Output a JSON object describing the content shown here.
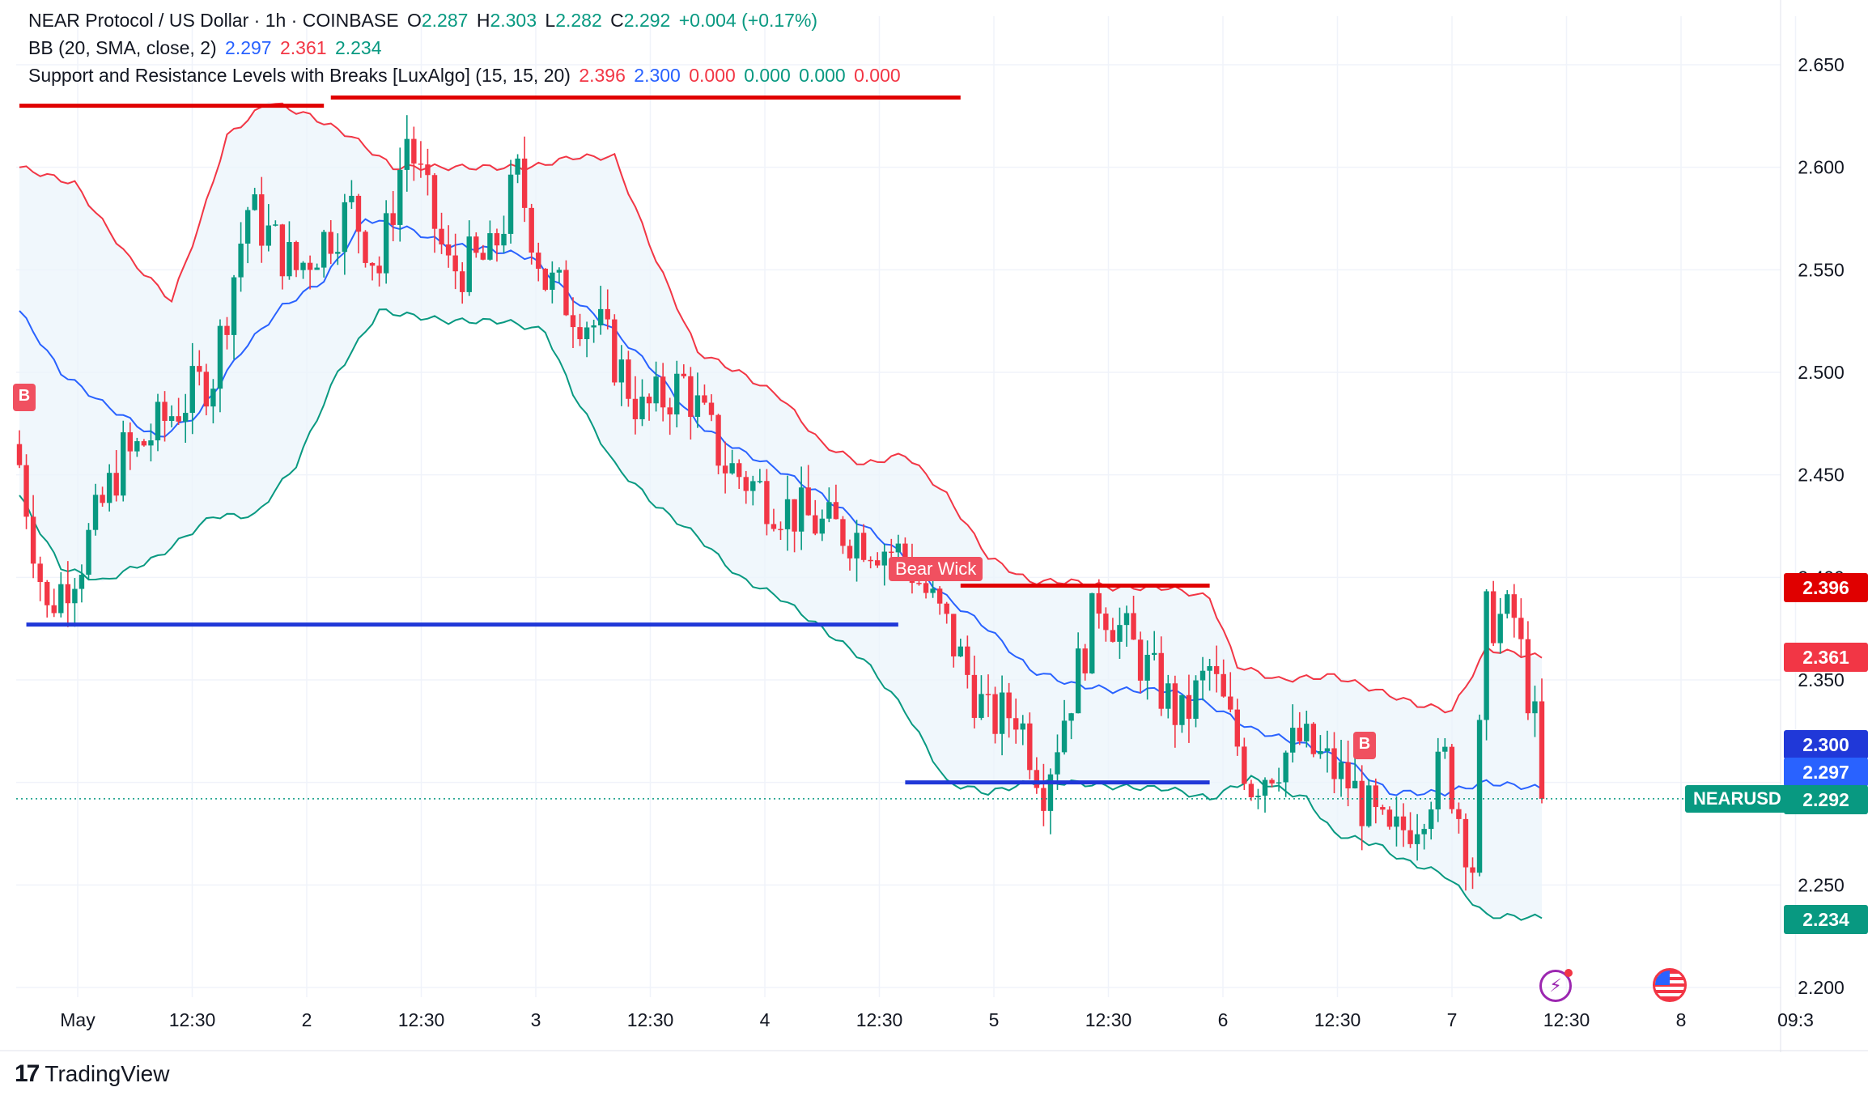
{
  "legend": {
    "symbol": "NEAR Protocol / US Dollar · 1h · COINBASE",
    "o_label": "O",
    "o_value": "2.287",
    "h_label": "H",
    "h_value": "2.303",
    "l_label": "L",
    "l_value": "2.282",
    "c_label": "C",
    "c_value": "2.292",
    "change": "+0.004 (+0.17%)",
    "bb_label": "BB (20, SMA, close, 2)",
    "bb_basis": "2.297",
    "bb_upper": "2.361",
    "bb_lower": "2.234",
    "sr_label": "Support and Resistance Levels with Breaks [LuxAlgo] (15, 15, 20)",
    "sr_v1": "2.396",
    "sr_v2": "2.300",
    "sr_v3": "0.000",
    "sr_v4": "0.000",
    "sr_v5": "0.000",
    "sr_v6": "0.000"
  },
  "price_tags": {
    "resistance": "2.396",
    "bb_upper": "2.361",
    "support": "2.300",
    "bb_basis": "2.297",
    "symbol": "NEARUSD",
    "last": "2.292",
    "bb_lower": "2.234"
  },
  "labels": {
    "bear_wick": "Bear Wick",
    "b1": "B",
    "b2": "B"
  },
  "footer": {
    "brand": "TradingView",
    "mark": "17"
  },
  "colors": {
    "up": "#089981",
    "down": "#f23645",
    "bb_basis": "#2962ff",
    "bb_upper": "#f23645",
    "bb_lower": "#089981",
    "bb_fill": "#eaf3fb",
    "resistance": "#e00000",
    "support": "#2038d8"
  },
  "chart_data": {
    "type": "candlestick",
    "title": "NEAR Protocol / US Dollar · 1h · COINBASE",
    "ylim": [
      2.19,
      2.665
    ],
    "y_ticks": [
      "2.650",
      "2.600",
      "2.550",
      "2.500",
      "2.450",
      "2.400",
      "2.350",
      "2.300",
      "2.250",
      "2.200"
    ],
    "x_ticks": [
      "May",
      "12:30",
      "2",
      "12:30",
      "3",
      "12:30",
      "4",
      "12:30",
      "5",
      "12:30",
      "6",
      "12:30",
      "7",
      "12:30",
      "8",
      "09:3"
    ],
    "ohlc_keypoints": [
      [
        0,
        2.455,
        2.382
      ],
      [
        4,
        2.385,
        2.41
      ],
      [
        9,
        2.41,
        2.46
      ],
      [
        15,
        2.455,
        2.48
      ],
      [
        22,
        2.48,
        2.5
      ],
      [
        28,
        2.5,
        2.58
      ],
      [
        33,
        2.58,
        2.55
      ],
      [
        40,
        2.55,
        2.58
      ],
      [
        48,
        2.58,
        2.55
      ],
      [
        52,
        2.55,
        2.615
      ],
      [
        56,
        2.615,
        2.55
      ],
      [
        62,
        2.55,
        2.555
      ],
      [
        68,
        2.555,
        2.595
      ],
      [
        72,
        2.595,
        2.545
      ],
      [
        76,
        2.545,
        2.52
      ],
      [
        84,
        2.52,
        2.48
      ],
      [
        90,
        2.48,
        2.495
      ],
      [
        96,
        2.495,
        2.455
      ],
      [
        102,
        2.455,
        2.435
      ],
      [
        110,
        2.435,
        2.425
      ],
      [
        116,
        2.425,
        2.42
      ],
      [
        122,
        2.42,
        2.41
      ],
      [
        128,
        2.41,
        2.375
      ],
      [
        134,
        2.375,
        2.33
      ],
      [
        140,
        2.33,
        2.335
      ],
      [
        144,
        2.335,
        2.3
      ],
      [
        148,
        2.3,
        2.355
      ],
      [
        153,
        2.355,
        2.39
      ],
      [
        156,
        2.39,
        2.37
      ],
      [
        160,
        2.37,
        2.33
      ],
      [
        168,
        2.33,
        2.355
      ],
      [
        172,
        2.355,
        2.3
      ],
      [
        178,
        2.3,
        2.32
      ],
      [
        185,
        2.32,
        2.3
      ],
      [
        192,
        2.3,
        2.27
      ],
      [
        198,
        2.27,
        2.285
      ],
      [
        202,
        2.285,
        2.31
      ],
      [
        206,
        2.31,
        2.26
      ],
      [
        210,
        2.26,
        2.38
      ],
      [
        212,
        2.38,
        2.38
      ],
      [
        216,
        2.38,
        2.31
      ],
      [
        220,
        2.31,
        2.292
      ]
    ],
    "last_close": 2.292,
    "bollinger": {
      "period": 20,
      "basis": 2.297,
      "upper": 2.361,
      "lower": 2.234,
      "upper_path": [
        [
          0,
          2.6
        ],
        [
          8,
          2.592
        ],
        [
          16,
          2.555
        ],
        [
          22,
          2.535
        ],
        [
          26,
          2.572
        ],
        [
          30,
          2.615
        ],
        [
          36,
          2.632
        ],
        [
          42,
          2.625
        ],
        [
          48,
          2.615
        ],
        [
          54,
          2.6
        ],
        [
          60,
          2.6
        ],
        [
          68,
          2.6
        ],
        [
          74,
          2.6
        ],
        [
          80,
          2.605
        ],
        [
          86,
          2.605
        ],
        [
          92,
          2.555
        ],
        [
          98,
          2.51
        ],
        [
          104,
          2.5
        ],
        [
          110,
          2.488
        ],
        [
          116,
          2.465
        ],
        [
          122,
          2.455
        ],
        [
          128,
          2.46
        ],
        [
          134,
          2.44
        ],
        [
          140,
          2.41
        ],
        [
          146,
          2.398
        ],
        [
          152,
          2.398
        ],
        [
          158,
          2.395
        ],
        [
          166,
          2.395
        ],
        [
          172,
          2.39
        ],
        [
          176,
          2.357
        ],
        [
          182,
          2.35
        ],
        [
          190,
          2.352
        ],
        [
          196,
          2.345
        ],
        [
          202,
          2.338
        ],
        [
          207,
          2.335
        ],
        [
          212,
          2.365
        ],
        [
          220,
          2.361
        ]
      ],
      "basis_path": [
        [
          0,
          2.53
        ],
        [
          6,
          2.5
        ],
        [
          12,
          2.485
        ],
        [
          20,
          2.468
        ],
        [
          26,
          2.48
        ],
        [
          32,
          2.51
        ],
        [
          38,
          2.532
        ],
        [
          44,
          2.545
        ],
        [
          50,
          2.575
        ],
        [
          56,
          2.57
        ],
        [
          62,
          2.562
        ],
        [
          68,
          2.56
        ],
        [
          74,
          2.556
        ],
        [
          80,
          2.536
        ],
        [
          86,
          2.52
        ],
        [
          92,
          2.5
        ],
        [
          98,
          2.475
        ],
        [
          104,
          2.462
        ],
        [
          110,
          2.452
        ],
        [
          116,
          2.44
        ],
        [
          122,
          2.425
        ],
        [
          128,
          2.41
        ],
        [
          134,
          2.39
        ],
        [
          140,
          2.375
        ],
        [
          146,
          2.355
        ],
        [
          152,
          2.348
        ],
        [
          158,
          2.345
        ],
        [
          166,
          2.345
        ],
        [
          172,
          2.338
        ],
        [
          178,
          2.326
        ],
        [
          186,
          2.318
        ],
        [
          192,
          2.31
        ],
        [
          198,
          2.295
        ],
        [
          206,
          2.295
        ],
        [
          212,
          2.3
        ],
        [
          220,
          2.297
        ]
      ],
      "lower_path": [
        [
          0,
          2.44
        ],
        [
          6,
          2.405
        ],
        [
          12,
          2.398
        ],
        [
          20,
          2.41
        ],
        [
          24,
          2.42
        ],
        [
          28,
          2.43
        ],
        [
          34,
          2.43
        ],
        [
          40,
          2.455
        ],
        [
          46,
          2.5
        ],
        [
          52,
          2.53
        ],
        [
          56,
          2.528
        ],
        [
          62,
          2.525
        ],
        [
          70,
          2.525
        ],
        [
          76,
          2.52
        ],
        [
          80,
          2.49
        ],
        [
          86,
          2.455
        ],
        [
          92,
          2.435
        ],
        [
          98,
          2.42
        ],
        [
          104,
          2.4
        ],
        [
          110,
          2.39
        ],
        [
          116,
          2.375
        ],
        [
          122,
          2.36
        ],
        [
          128,
          2.335
        ],
        [
          134,
          2.3
        ],
        [
          140,
          2.295
        ],
        [
          146,
          2.3
        ],
        [
          152,
          2.3
        ],
        [
          158,
          2.298
        ],
        [
          166,
          2.297
        ],
        [
          172,
          2.292
        ],
        [
          178,
          2.302
        ],
        [
          186,
          2.292
        ],
        [
          190,
          2.275
        ],
        [
          196,
          2.27
        ],
        [
          200,
          2.262
        ],
        [
          206,
          2.255
        ],
        [
          212,
          2.235
        ],
        [
          220,
          2.234
        ]
      ]
    },
    "resistance_levels": [
      {
        "from": 0,
        "to": 44,
        "y": 2.63
      },
      {
        "from": 45,
        "to": 136,
        "y": 2.634
      },
      {
        "from": 136,
        "to": 172,
        "y": 2.396
      }
    ],
    "support_levels": [
      {
        "from": 1,
        "to": 127,
        "y": 2.377
      },
      {
        "from": 128,
        "to": 172,
        "y": 2.3
      }
    ],
    "annotations": [
      {
        "text": "Bear Wick",
        "x": 112,
        "y": 2.395
      },
      {
        "text": "B",
        "x": 0,
        "y": 2.49
      },
      {
        "text": "B",
        "x": 167,
        "y": 2.318
      }
    ],
    "grid": true,
    "legend_position": "top-left"
  }
}
